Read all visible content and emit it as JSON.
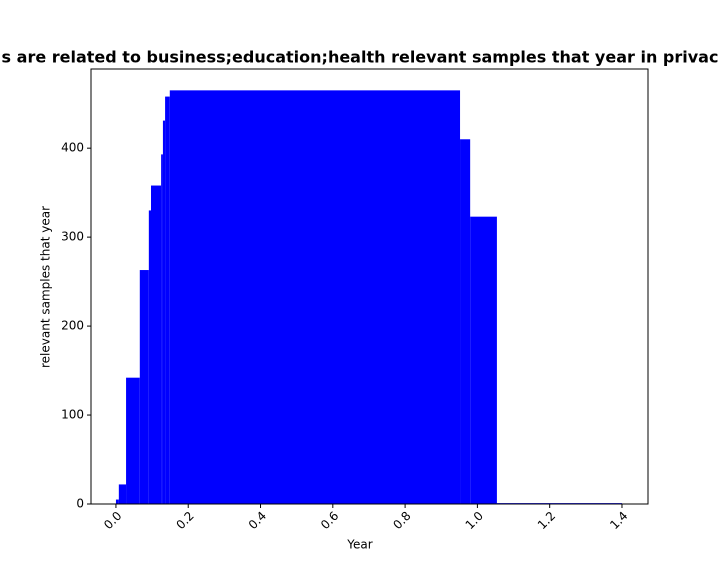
{
  "chart_data": {
    "type": "histogram",
    "title": "s are related to business;education;health relevant samples that year in privac",
    "xlabel": "Year",
    "ylabel": "relevant samples that year",
    "bins": [
      0,
      0.008,
      0.028,
      0.066,
      0.091,
      0.097,
      0.125,
      0.13,
      0.136,
      0.149,
      0.952,
      0.98,
      1.054,
      1.4
    ],
    "values": [
      5,
      22,
      142,
      263,
      330,
      358,
      393,
      431,
      458,
      465,
      410,
      323,
      1
    ],
    "color": "#0000ff",
    "xlim": [
      -0.069,
      1.472
    ],
    "xticks": [
      {
        "value": 0,
        "label": "0.0"
      },
      0.2,
      0.4,
      0.6,
      0.8,
      {
        "value": 1,
        "label": "1.0"
      },
      1.2,
      1.4
    ],
    "ylim": [
      0,
      489
    ],
    "yticks": [
      0,
      100,
      200,
      300,
      400
    ]
  }
}
